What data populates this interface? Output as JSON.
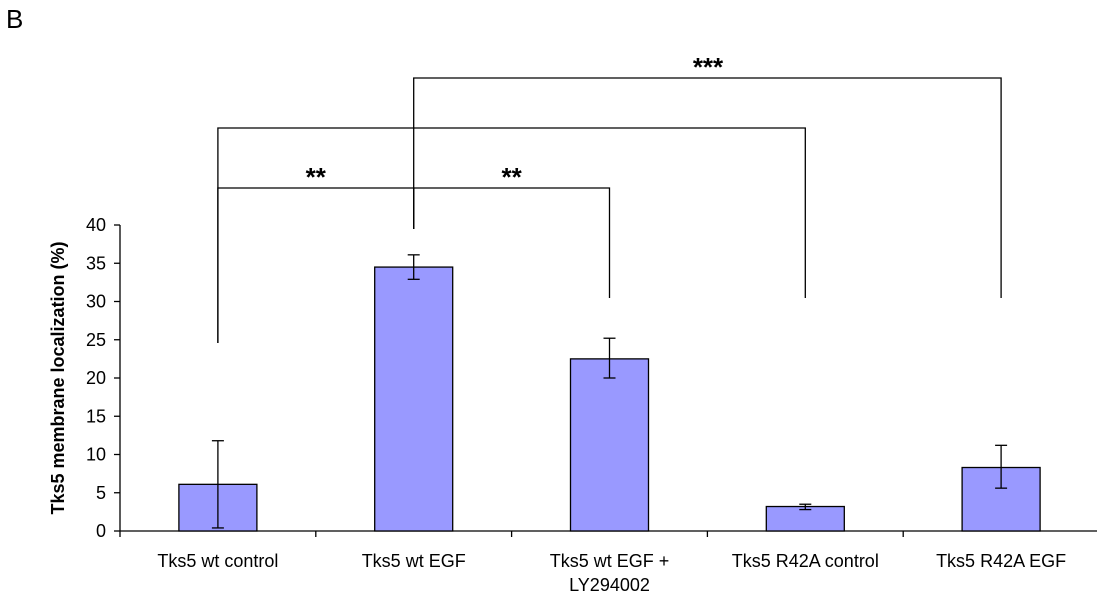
{
  "panel_label": "B",
  "chart_data": {
    "type": "bar",
    "title": "",
    "xlabel": "",
    "ylabel": "Tks5 membrane localization (%)",
    "ylim": [
      0,
      40
    ],
    "yticks": [
      0,
      5,
      10,
      15,
      20,
      25,
      30,
      35,
      40
    ],
    "categories": [
      [
        "Tks5 wt control"
      ],
      [
        "Tks5 wt EGF"
      ],
      [
        "Tks5 wt EGF +",
        "LY294002"
      ],
      [
        "Tks5 R42A control"
      ],
      [
        "Tks5 R42A EGF"
      ]
    ],
    "values": [
      6.1,
      34.5,
      22.5,
      3.2,
      8.3
    ],
    "error_low": [
      5.7,
      1.6,
      2.5,
      0.4,
      2.7
    ],
    "error_high": [
      5.7,
      1.6,
      2.7,
      0.3,
      2.9
    ],
    "bar_color": "#9999ff",
    "grid": false,
    "significance": [
      {
        "label": "**",
        "from": 0,
        "to": 1
      },
      {
        "label": "**",
        "from": 1,
        "to": 2
      },
      {
        "label": "",
        "from": 0,
        "to": 3
      },
      {
        "label": "***",
        "from": 1,
        "to": 4
      }
    ]
  }
}
